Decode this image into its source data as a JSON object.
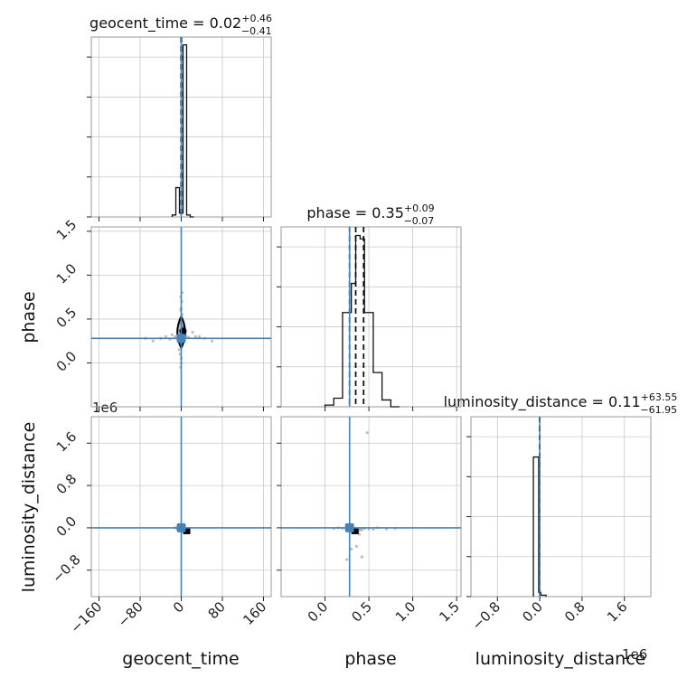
{
  "chart_data": {
    "type": "corner",
    "parameters": [
      "geocent_time",
      "phase",
      "luminosity_distance"
    ],
    "truths": {
      "geocent_time": 0.0,
      "phase": 0.28,
      "luminosity_distance": 0.0
    },
    "titles": [
      {
        "param": "geocent_time",
        "median": "0.02",
        "plus": "+0.46",
        "minus": "−0.41"
      },
      {
        "param": "phase",
        "median": "0.35",
        "plus": "+0.09",
        "minus": "−0.07"
      },
      {
        "param": "luminosity_distance",
        "median": "0.11",
        "plus": "+63.55",
        "minus": "−61.95"
      }
    ],
    "axes": {
      "geocent_time": {
        "range": [
          -175,
          175
        ],
        "ticks": [
          -160,
          -80,
          0,
          80,
          160
        ],
        "tick_labels": [
          "−160",
          "−80",
          "0",
          "80",
          "160"
        ]
      },
      "phase": {
        "range": [
          -0.5,
          1.55
        ],
        "ticks": [
          0.0,
          0.5,
          1.0,
          1.5
        ],
        "tick_labels": [
          "0.0",
          "0.5",
          "1.0",
          "1.5"
        ]
      },
      "luminosity_distance": {
        "range": [
          -1.3,
          2.1
        ],
        "ticks": [
          -0.8,
          0.0,
          0.8,
          1.6
        ],
        "tick_labels": [
          "−0.8",
          "0.0",
          "0.8",
          "1.6"
        ],
        "offset_text": "1e6"
      }
    },
    "histograms": {
      "geocent_time": {
        "edges": [
          -17.5,
          -10.5,
          -3.5,
          3.5,
          10.5,
          17.5,
          24.5
        ],
        "counts": [
          0.01,
          0.15,
          0.02,
          0.88,
          0.01,
          0.0
        ],
        "max": 0.92,
        "quantiles": [
          -0.41,
          0.02,
          0.46
        ]
      },
      "phase": {
        "edges": [
          0.0,
          0.1,
          0.2,
          0.3,
          0.35,
          0.4,
          0.45,
          0.55,
          0.65,
          0.75,
          0.85
        ],
        "counts": [
          0.01,
          0.05,
          0.55,
          0.72,
          1.0,
          0.98,
          0.55,
          0.2,
          0.04,
          0.0
        ],
        "max": 1.05,
        "quantiles": [
          0.28,
          0.35,
          0.44
        ]
      },
      "luminosity_distance": {
        "edges": [
          -0.12,
          -0.02,
          0.02,
          0.12
        ],
        "counts": [
          0.97,
          0.03,
          0.01
        ],
        "max": 1.25,
        "quantiles": [
          -6e-05,
          1e-07,
          6e-05
        ]
      }
    },
    "scatter": {
      "phase_vs_geocent_time": [
        [
          -6,
          0.3
        ],
        [
          -3,
          0.45
        ],
        [
          -2,
          0.5
        ],
        [
          -1,
          0.6
        ],
        [
          0,
          0.62
        ],
        [
          2,
          0.55
        ],
        [
          3,
          0.4
        ],
        [
          5,
          0.3
        ],
        [
          1,
          0.2
        ],
        [
          -4,
          0.15
        ],
        [
          -2,
          0.1
        ],
        [
          0,
          0.05
        ],
        [
          4,
          0.25
        ],
        [
          6,
          0.35
        ],
        [
          -8,
          0.28
        ],
        [
          8,
          0.32
        ],
        [
          -30,
          0.3
        ],
        [
          -40,
          0.28
        ],
        [
          -55,
          0.25
        ],
        [
          35,
          0.3
        ],
        [
          60,
          0.25
        ],
        [
          -70,
          0.28
        ],
        [
          -18,
          0.32
        ],
        [
          22,
          0.35
        ],
        [
          1,
          0.7
        ],
        [
          -1,
          0.75
        ],
        [
          2,
          0.8
        ],
        [
          0,
          0.0
        ],
        [
          -1,
          -0.05
        ],
        [
          3,
          0.42
        ],
        [
          -3,
          0.37
        ],
        [
          10,
          0.3
        ],
        [
          -12,
          0.3
        ],
        [
          15,
          0.29
        ],
        [
          -22,
          0.27
        ],
        [
          28,
          0.3
        ],
        [
          45,
          0.28
        ]
      ],
      "luminosity_distance_vs_geocent_time": [
        [
          -5,
          0.0
        ],
        [
          0,
          0.0
        ],
        [
          5,
          -0.02
        ],
        [
          2,
          -0.03
        ],
        [
          -2,
          0.01
        ],
        [
          4,
          -0.01
        ],
        [
          8,
          -0.04
        ],
        [
          -8,
          -0.01
        ],
        [
          12,
          -0.02
        ],
        [
          -12,
          0.0
        ],
        [
          6,
          -0.05
        ],
        [
          3,
          -0.06
        ]
      ],
      "luminosity_distance_vs_phase": [
        [
          0.3,
          0.0
        ],
        [
          0.35,
          -0.02
        ],
        [
          0.4,
          -0.03
        ],
        [
          0.45,
          -0.01
        ],
        [
          0.28,
          0.01
        ],
        [
          0.38,
          -0.05
        ],
        [
          0.42,
          -0.04
        ],
        [
          0.5,
          -0.02
        ],
        [
          0.25,
          0.0
        ],
        [
          0.2,
          -0.01
        ],
        [
          0.55,
          -0.03
        ],
        [
          0.33,
          -0.06
        ],
        [
          0.37,
          -0.08
        ],
        [
          0.48,
          1.8
        ],
        [
          0.25,
          -0.6
        ],
        [
          0.42,
          -0.55
        ],
        [
          0.3,
          -0.4
        ],
        [
          0.36,
          -0.35
        ],
        [
          0.6,
          0.0
        ],
        [
          0.15,
          0.0
        ],
        [
          0.1,
          -0.01
        ],
        [
          0.7,
          -0.02
        ],
        [
          0.8,
          -0.01
        ],
        [
          0.39,
          -0.12
        ]
      ]
    },
    "contours": {
      "phase_vs_geocent_time": {
        "center": [
          0,
          0.35
        ],
        "half_width": 8,
        "half_height": 0.18
      }
    },
    "grid": true
  }
}
